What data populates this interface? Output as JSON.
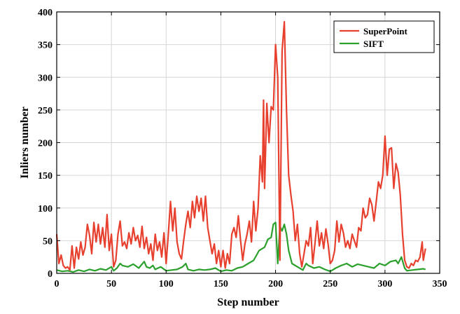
{
  "chart_data": {
    "type": "line",
    "title": "",
    "xlabel": "Step number",
    "ylabel": "Inliers number",
    "xlim": [
      0,
      350
    ],
    "ylim": [
      0,
      400
    ],
    "xticks": [
      0,
      50,
      100,
      150,
      200,
      250,
      300,
      350
    ],
    "yticks": [
      0,
      50,
      100,
      150,
      200,
      250,
      300,
      350,
      400
    ],
    "grid": true,
    "legend_position": "top-right",
    "series": [
      {
        "name": "SuperPoint",
        "color": "#e8402e",
        "points": [
          [
            0,
            60
          ],
          [
            2,
            15
          ],
          [
            4,
            28
          ],
          [
            6,
            12
          ],
          [
            8,
            8
          ],
          [
            10,
            10
          ],
          [
            12,
            5
          ],
          [
            14,
            42
          ],
          [
            16,
            8
          ],
          [
            18,
            40
          ],
          [
            20,
            22
          ],
          [
            22,
            48
          ],
          [
            24,
            28
          ],
          [
            26,
            40
          ],
          [
            28,
            75
          ],
          [
            30,
            58
          ],
          [
            32,
            30
          ],
          [
            34,
            78
          ],
          [
            36,
            48
          ],
          [
            38,
            75
          ],
          [
            40,
            45
          ],
          [
            42,
            70
          ],
          [
            44,
            40
          ],
          [
            46,
            90
          ],
          [
            48,
            35
          ],
          [
            50,
            60
          ],
          [
            52,
            10
          ],
          [
            54,
            20
          ],
          [
            56,
            60
          ],
          [
            58,
            80
          ],
          [
            60,
            42
          ],
          [
            62,
            48
          ],
          [
            64,
            38
          ],
          [
            66,
            62
          ],
          [
            68,
            45
          ],
          [
            70,
            70
          ],
          [
            72,
            50
          ],
          [
            74,
            58
          ],
          [
            76,
            40
          ],
          [
            78,
            72
          ],
          [
            80,
            38
          ],
          [
            82,
            55
          ],
          [
            84,
            30
          ],
          [
            86,
            45
          ],
          [
            88,
            20
          ],
          [
            90,
            60
          ],
          [
            92,
            35
          ],
          [
            94,
            48
          ],
          [
            96,
            25
          ],
          [
            98,
            62
          ],
          [
            100,
            15
          ],
          [
            102,
            60
          ],
          [
            104,
            110
          ],
          [
            106,
            65
          ],
          [
            108,
            100
          ],
          [
            110,
            48
          ],
          [
            112,
            30
          ],
          [
            114,
            22
          ],
          [
            116,
            50
          ],
          [
            118,
            75
          ],
          [
            120,
            95
          ],
          [
            122,
            70
          ],
          [
            124,
            110
          ],
          [
            126,
            85
          ],
          [
            128,
            118
          ],
          [
            130,
            95
          ],
          [
            132,
            115
          ],
          [
            134,
            80
          ],
          [
            136,
            118
          ],
          [
            138,
            70
          ],
          [
            140,
            50
          ],
          [
            142,
            30
          ],
          [
            144,
            45
          ],
          [
            146,
            15
          ],
          [
            148,
            35
          ],
          [
            150,
            10
          ],
          [
            152,
            35
          ],
          [
            154,
            8
          ],
          [
            156,
            30
          ],
          [
            158,
            15
          ],
          [
            160,
            60
          ],
          [
            162,
            70
          ],
          [
            164,
            55
          ],
          [
            166,
            88
          ],
          [
            168,
            50
          ],
          [
            170,
            20
          ],
          [
            172,
            45
          ],
          [
            174,
            60
          ],
          [
            176,
            80
          ],
          [
            178,
            48
          ],
          [
            180,
            110
          ],
          [
            182,
            65
          ],
          [
            184,
            100
          ],
          [
            186,
            180
          ],
          [
            188,
            140
          ],
          [
            189,
            265
          ],
          [
            190,
            130
          ],
          [
            192,
            260
          ],
          [
            194,
            200
          ],
          [
            196,
            255
          ],
          [
            198,
            250
          ],
          [
            200,
            350
          ],
          [
            202,
            300
          ],
          [
            204,
            20
          ],
          [
            206,
            340
          ],
          [
            208,
            385
          ],
          [
            210,
            250
          ],
          [
            212,
            150
          ],
          [
            214,
            120
          ],
          [
            216,
            95
          ],
          [
            218,
            50
          ],
          [
            220,
            75
          ],
          [
            222,
            30
          ],
          [
            224,
            10
          ],
          [
            226,
            30
          ],
          [
            228,
            50
          ],
          [
            230,
            42
          ],
          [
            232,
            70
          ],
          [
            234,
            15
          ],
          [
            236,
            45
          ],
          [
            238,
            80
          ],
          [
            240,
            42
          ],
          [
            242,
            62
          ],
          [
            244,
            38
          ],
          [
            246,
            68
          ],
          [
            248,
            45
          ],
          [
            250,
            15
          ],
          [
            252,
            20
          ],
          [
            254,
            35
          ],
          [
            256,
            80
          ],
          [
            258,
            48
          ],
          [
            260,
            75
          ],
          [
            262,
            62
          ],
          [
            264,
            40
          ],
          [
            266,
            50
          ],
          [
            268,
            38
          ],
          [
            270,
            60
          ],
          [
            272,
            50
          ],
          [
            274,
            40
          ],
          [
            276,
            70
          ],
          [
            278,
            65
          ],
          [
            280,
            100
          ],
          [
            282,
            85
          ],
          [
            284,
            90
          ],
          [
            286,
            115
          ],
          [
            288,
            105
          ],
          [
            290,
            80
          ],
          [
            292,
            110
          ],
          [
            294,
            140
          ],
          [
            296,
            130
          ],
          [
            298,
            150
          ],
          [
            300,
            210
          ],
          [
            302,
            150
          ],
          [
            304,
            190
          ],
          [
            306,
            192
          ],
          [
            308,
            130
          ],
          [
            310,
            168
          ],
          [
            312,
            155
          ],
          [
            314,
            120
          ],
          [
            316,
            60
          ],
          [
            318,
            20
          ],
          [
            320,
            10
          ],
          [
            322,
            8
          ],
          [
            324,
            15
          ],
          [
            326,
            12
          ],
          [
            328,
            20
          ],
          [
            330,
            18
          ],
          [
            332,
            25
          ],
          [
            334,
            48
          ],
          [
            335,
            20
          ],
          [
            337,
            38
          ]
        ]
      },
      {
        "name": "SIFT",
        "color": "#2ca02c",
        "points": [
          [
            0,
            5
          ],
          [
            5,
            3
          ],
          [
            10,
            4
          ],
          [
            15,
            2
          ],
          [
            20,
            5
          ],
          [
            25,
            3
          ],
          [
            30,
            6
          ],
          [
            35,
            4
          ],
          [
            40,
            7
          ],
          [
            45,
            5
          ],
          [
            50,
            10
          ],
          [
            52,
            4
          ],
          [
            55,
            8
          ],
          [
            58,
            15
          ],
          [
            60,
            12
          ],
          [
            65,
            10
          ],
          [
            70,
            14
          ],
          [
            75,
            8
          ],
          [
            80,
            18
          ],
          [
            82,
            10
          ],
          [
            85,
            8
          ],
          [
            88,
            12
          ],
          [
            90,
            6
          ],
          [
            95,
            10
          ],
          [
            100,
            4
          ],
          [
            105,
            5
          ],
          [
            110,
            6
          ],
          [
            115,
            10
          ],
          [
            118,
            15
          ],
          [
            120,
            6
          ],
          [
            125,
            4
          ],
          [
            130,
            6
          ],
          [
            135,
            5
          ],
          [
            140,
            6
          ],
          [
            145,
            8
          ],
          [
            150,
            3
          ],
          [
            155,
            5
          ],
          [
            160,
            4
          ],
          [
            165,
            8
          ],
          [
            170,
            10
          ],
          [
            175,
            15
          ],
          [
            180,
            20
          ],
          [
            185,
            35
          ],
          [
            190,
            40
          ],
          [
            193,
            52
          ],
          [
            196,
            55
          ],
          [
            198,
            75
          ],
          [
            200,
            78
          ],
          [
            202,
            15
          ],
          [
            204,
            72
          ],
          [
            206,
            65
          ],
          [
            208,
            75
          ],
          [
            210,
            60
          ],
          [
            212,
            35
          ],
          [
            215,
            15
          ],
          [
            220,
            10
          ],
          [
            225,
            5
          ],
          [
            228,
            15
          ],
          [
            230,
            12
          ],
          [
            235,
            8
          ],
          [
            240,
            10
          ],
          [
            245,
            6
          ],
          [
            250,
            3
          ],
          [
            255,
            8
          ],
          [
            260,
            12
          ],
          [
            265,
            15
          ],
          [
            270,
            10
          ],
          [
            275,
            14
          ],
          [
            280,
            12
          ],
          [
            285,
            10
          ],
          [
            290,
            8
          ],
          [
            295,
            15
          ],
          [
            300,
            12
          ],
          [
            305,
            18
          ],
          [
            310,
            20
          ],
          [
            312,
            15
          ],
          [
            315,
            25
          ],
          [
            318,
            8
          ],
          [
            320,
            4
          ],
          [
            325,
            5
          ],
          [
            330,
            6
          ],
          [
            335,
            7
          ],
          [
            337,
            6
          ]
        ]
      }
    ]
  }
}
